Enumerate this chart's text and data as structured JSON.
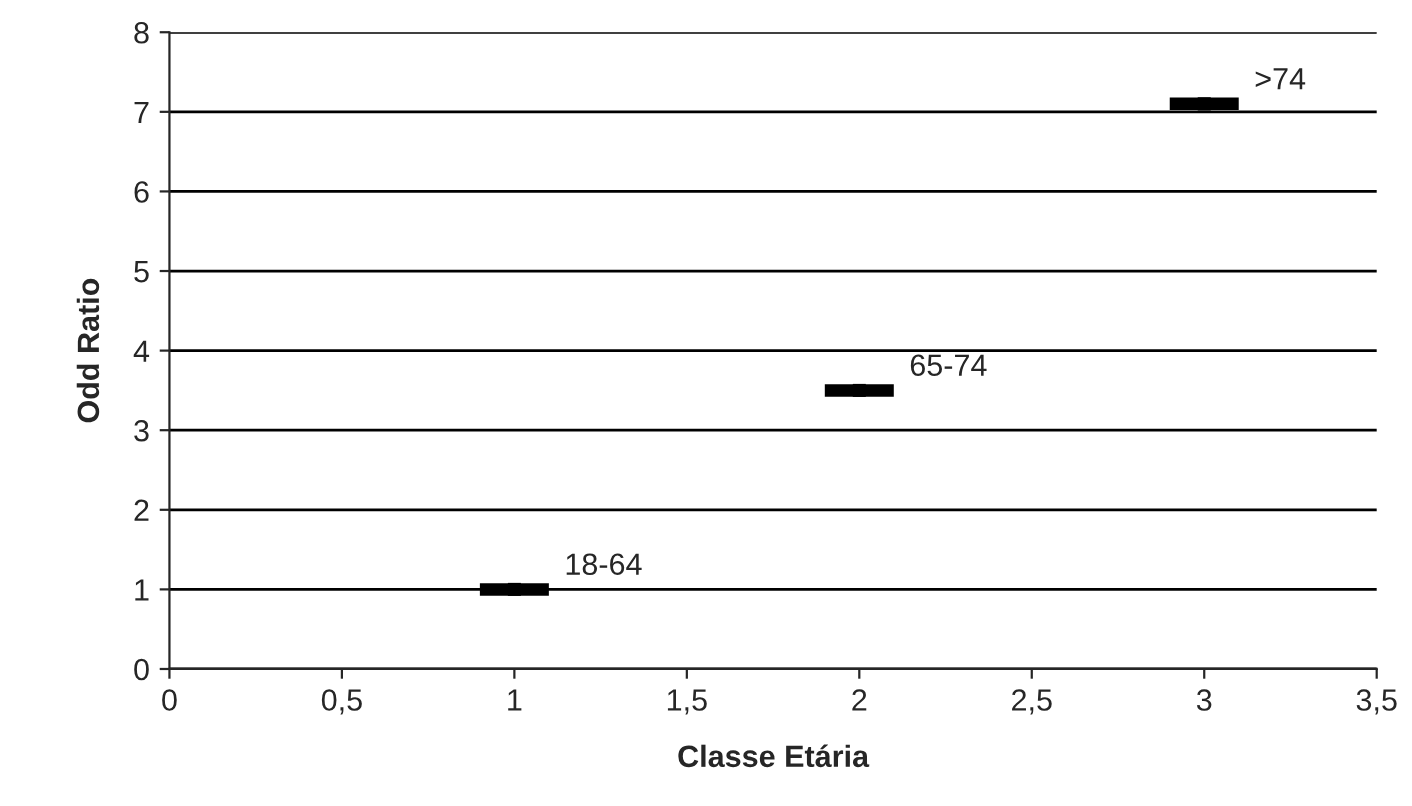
{
  "chart_data": {
    "type": "scatter",
    "xlabel": "Classe Etária",
    "ylabel": "Odd Ratio",
    "x": [
      1,
      2,
      3
    ],
    "values": [
      1.0,
      3.5,
      7.1
    ],
    "xerrors": [
      0.1,
      0.1,
      0.1
    ],
    "marker": "square",
    "color": "#000000",
    "annotations": [
      {
        "text": "18-64",
        "x": 1,
        "y": 1.0
      },
      {
        "text": "65-74",
        "x": 2,
        "y": 3.5
      },
      {
        "text": ">74",
        "x": 3,
        "y": 7.1
      }
    ],
    "xlim": [
      0,
      3.5
    ],
    "xticks": [
      0,
      {
        "value": 0.5,
        "label": "0,5"
      },
      1,
      {
        "value": 1.5,
        "label": "1,5"
      },
      2,
      {
        "value": 2.5,
        "label": "2,5"
      },
      3,
      {
        "value": 3.5,
        "label": "3,5"
      }
    ],
    "ylim": [
      0,
      8
    ],
    "yticks": [
      0,
      1,
      2,
      3,
      4,
      5,
      6,
      7,
      8
    ],
    "grid": "y",
    "legend": false
  }
}
